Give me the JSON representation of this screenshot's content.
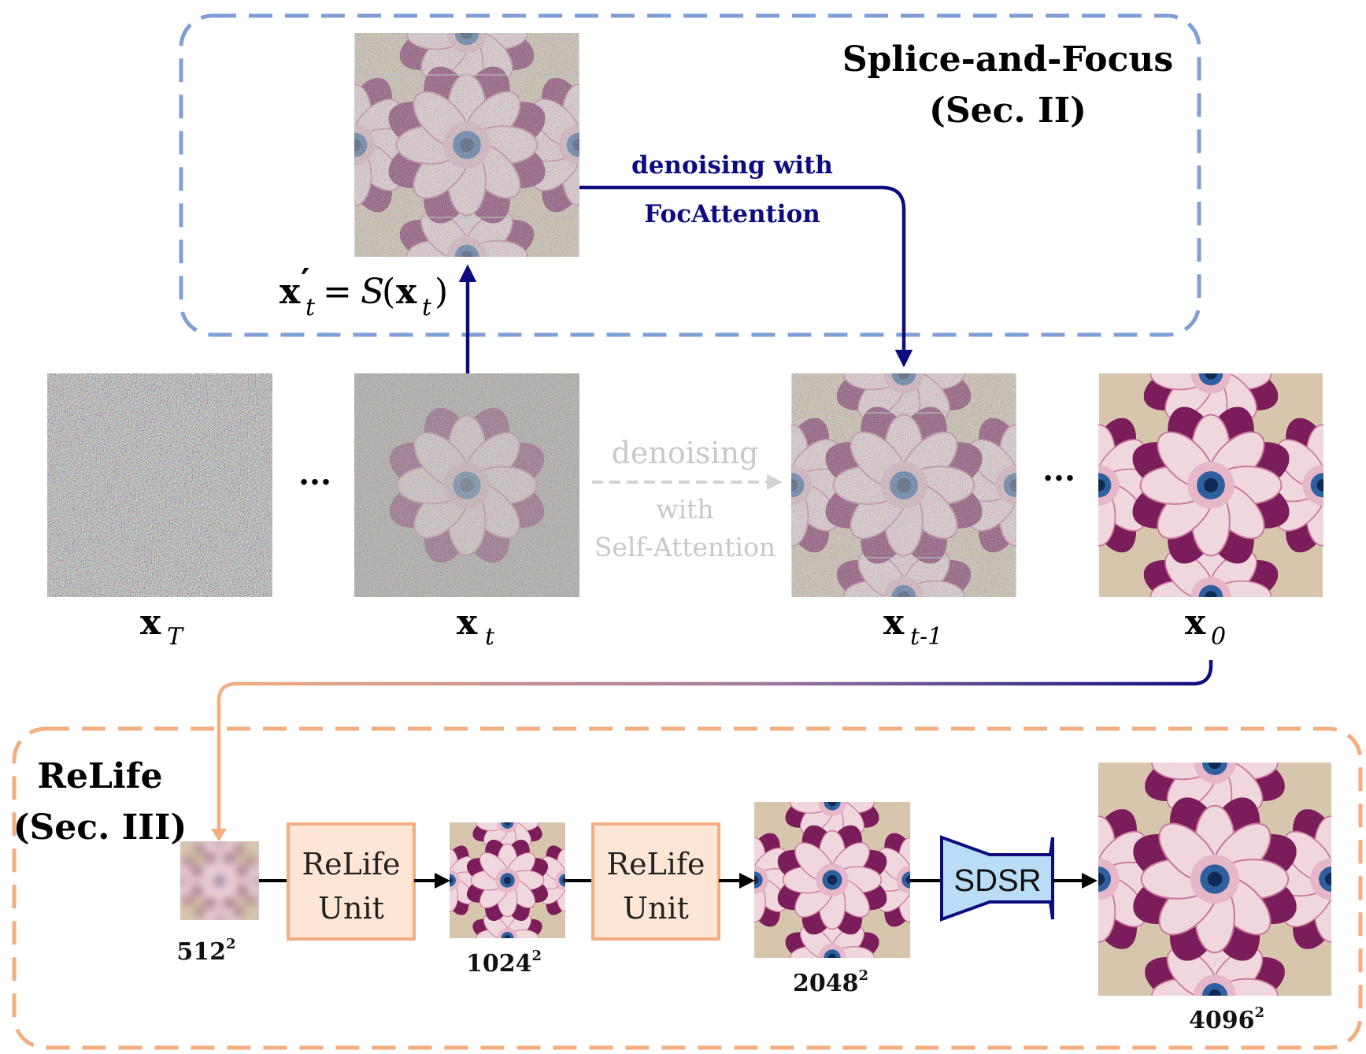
{
  "splice_focus": {
    "title_line1": "Splice-and-Focus",
    "title_line2": "(Sec. II)",
    "equation": {
      "lhs": "x",
      "lhs_prime": "′",
      "lhs_sub": "t",
      "equals": "=",
      "func": "S",
      "open": "(",
      "arg": "x",
      "arg_sub": "t",
      "close": ")"
    },
    "arrow_label_line1": "denoising with",
    "arrow_label_line2": "FocAttention"
  },
  "pipeline": {
    "ellipsis": "...",
    "gray_label_line1": "denoising",
    "gray_label_line2": "with",
    "gray_label_line3": "Self-Attention",
    "latents": [
      {
        "base": "x",
        "sub": "T"
      },
      {
        "base": "x",
        "sub": "t"
      },
      {
        "base": "x",
        "sub": "t-1"
      },
      {
        "base": "x",
        "sub": "0"
      }
    ]
  },
  "relife": {
    "title_line1": "ReLife",
    "title_line2": "(Sec. III)",
    "unit_line1": "ReLife",
    "unit_line2": "Unit",
    "sdsr_label": "SDSR",
    "resolutions": [
      {
        "base": "512",
        "exp": "2"
      },
      {
        "base": "1024",
        "exp": "2"
      },
      {
        "base": "2048",
        "exp": "2"
      },
      {
        "base": "4096",
        "exp": "2"
      }
    ]
  },
  "colors": {
    "blue_dashed_box": "#7f9fd6",
    "orange_dashed_box": "#f2ae80",
    "dark_blue_arrow": "#0c0c80",
    "orange_arrow": "#f2ae80",
    "relife_unit_fill": "#fde6d6",
    "relife_unit_border": "#f2ae80",
    "sdsr_fill": "#b9ddf7",
    "sdsr_border": "#0c0c80",
    "gray_arrow": "#c8c8c8",
    "flower_background": "#d7c6ad"
  }
}
